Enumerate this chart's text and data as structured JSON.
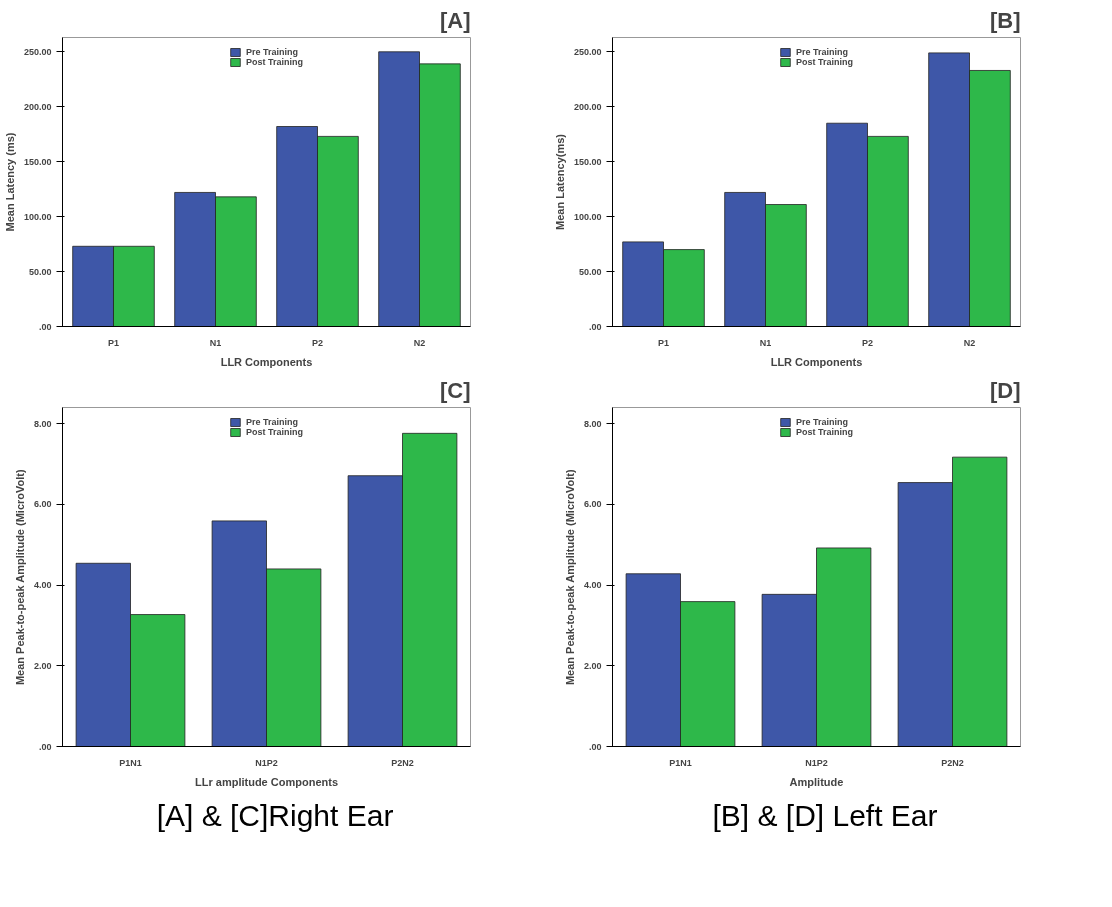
{
  "chart_data": [
    {
      "type": "bar",
      "title": "[A]",
      "xlabel": "LLR Components",
      "ylabel": "Mean Latency (ms)",
      "categories": [
        "P1",
        "N1",
        "P2",
        "N2"
      ],
      "series": [
        {
          "name": "Pre Training",
          "color": "#3e57a8",
          "values": [
            73,
            122,
            182,
            250
          ]
        },
        {
          "name": "Post Training",
          "color": "#2eb84a",
          "values": [
            73,
            118,
            173,
            239
          ]
        }
      ],
      "ylim": [
        0,
        263
      ],
      "yticks": [
        {
          "value": 0,
          "label": ".00"
        },
        {
          "value": 50,
          "label": "50.00"
        },
        {
          "value": 100,
          "label": "100.00"
        },
        {
          "value": 150,
          "label": "150.00"
        },
        {
          "value": 200,
          "label": "200.00"
        },
        {
          "value": 250,
          "label": "250.00"
        }
      ],
      "grid": false,
      "legend": "top"
    },
    {
      "type": "bar",
      "title": "[B]",
      "xlabel": "LLR Components",
      "ylabel": "Mean Latency(ms)",
      "categories": [
        "P1",
        "N1",
        "P2",
        "N2"
      ],
      "series": [
        {
          "name": "Pre Training",
          "color": "#3e57a8",
          "values": [
            77,
            122,
            185,
            249
          ]
        },
        {
          "name": "Post Training",
          "color": "#2eb84a",
          "values": [
            70,
            111,
            173,
            233
          ]
        }
      ],
      "ylim": [
        0,
        263
      ],
      "yticks": [
        {
          "value": 0,
          "label": ".00"
        },
        {
          "value": 50,
          "label": "50.00"
        },
        {
          "value": 100,
          "label": "100.00"
        },
        {
          "value": 150,
          "label": "150.00"
        },
        {
          "value": 200,
          "label": "200.00"
        },
        {
          "value": 250,
          "label": "250.00"
        }
      ],
      "grid": false,
      "legend": "top"
    },
    {
      "type": "bar",
      "title": "[C]",
      "xlabel": "LLr amplitude Components",
      "ylabel": "Mean Peak-to-peak Amplitude (MicroVolt)",
      "categories": [
        "P1N1",
        "N1P2",
        "P2N2"
      ],
      "series": [
        {
          "name": "Pre Training",
          "color": "#3e57a8",
          "values": [
            4.54,
            5.59,
            6.71
          ]
        },
        {
          "name": "Post Training",
          "color": "#2eb84a",
          "values": [
            3.27,
            4.4,
            7.76
          ]
        }
      ],
      "ylim": [
        0,
        8.4
      ],
      "yticks": [
        {
          "value": 0,
          "label": ".00"
        },
        {
          "value": 2,
          "label": "2.00"
        },
        {
          "value": 4,
          "label": "4.00"
        },
        {
          "value": 6,
          "label": "6.00"
        },
        {
          "value": 8,
          "label": "8.00"
        }
      ],
      "grid": false,
      "legend": "top",
      "annotations": [
        "[A] & [C]Right Ear"
      ]
    },
    {
      "type": "bar",
      "title": "[D]",
      "xlabel": "Amplitude",
      "ylabel": "Mean Peak-to-peak Amplitude (MicroVolt)",
      "categories": [
        "P1N1",
        "N1P2",
        "P2N2"
      ],
      "series": [
        {
          "name": "Pre Training",
          "color": "#3e57a8",
          "values": [
            4.28,
            3.77,
            6.54
          ]
        },
        {
          "name": "Post Training",
          "color": "#2eb84a",
          "values": [
            3.59,
            4.92,
            7.17
          ]
        }
      ],
      "ylim": [
        0,
        8.4
      ],
      "yticks": [
        {
          "value": 0,
          "label": ".00"
        },
        {
          "value": 2,
          "label": "2.00"
        },
        {
          "value": 4,
          "label": "4.00"
        },
        {
          "value": 6,
          "label": "6.00"
        },
        {
          "value": 8,
          "label": "8.00"
        }
      ],
      "grid": false,
      "legend": "top",
      "annotations": [
        "[B] & [D] Left Ear"
      ]
    }
  ]
}
